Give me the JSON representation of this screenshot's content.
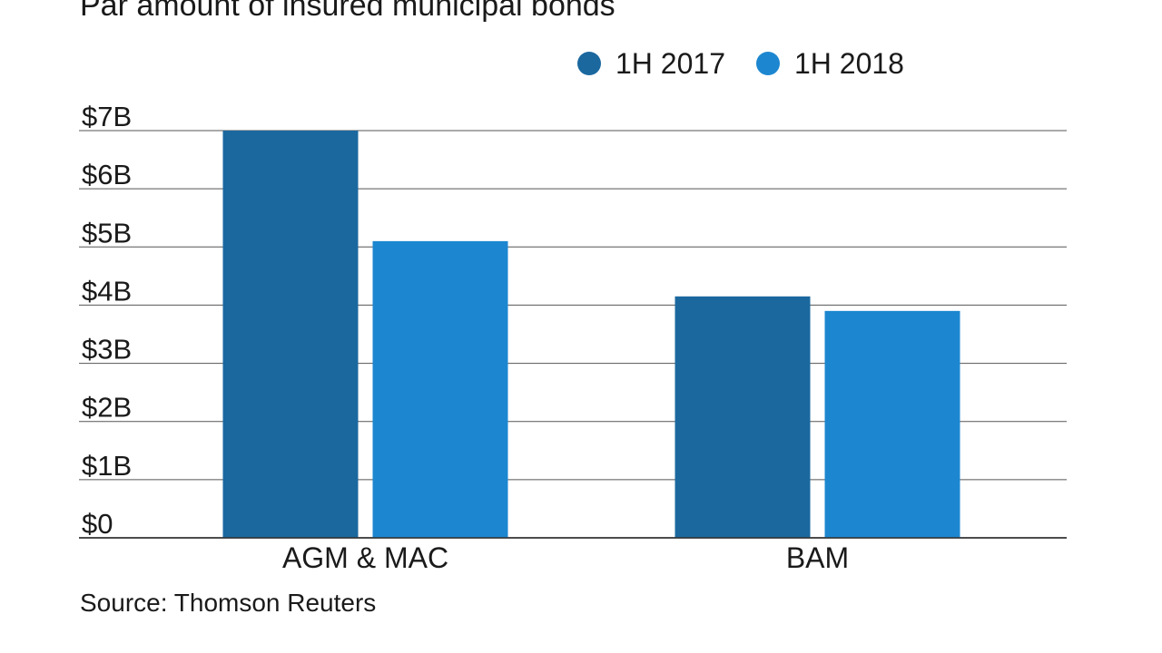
{
  "chart_data": {
    "type": "bar",
    "title": "Par amount of insured municipal bonds",
    "categories": [
      "AGM & MAC",
      "BAM"
    ],
    "series": [
      {
        "name": "1H 2017",
        "color": "#1b689f",
        "values": [
          7.0,
          4.15
        ]
      },
      {
        "name": "1H 2018",
        "color": "#1c87d0",
        "values": [
          5.1,
          3.9
        ]
      }
    ],
    "yticks": [
      {
        "value": 0,
        "label": "$0"
      },
      {
        "value": 1,
        "label": "$1B"
      },
      {
        "value": 2,
        "label": "$2B"
      },
      {
        "value": 3,
        "label": "$3B"
      },
      {
        "value": 4,
        "label": "$4B"
      },
      {
        "value": 5,
        "label": "$5B"
      },
      {
        "value": 6,
        "label": "$6B"
      },
      {
        "value": 7,
        "label": "$7B"
      }
    ],
    "ylim": [
      0,
      7
    ],
    "xlabel": "",
    "ylabel": "",
    "grid": true,
    "legend_position": "top-right"
  },
  "source": "Source: Thomson Reuters"
}
